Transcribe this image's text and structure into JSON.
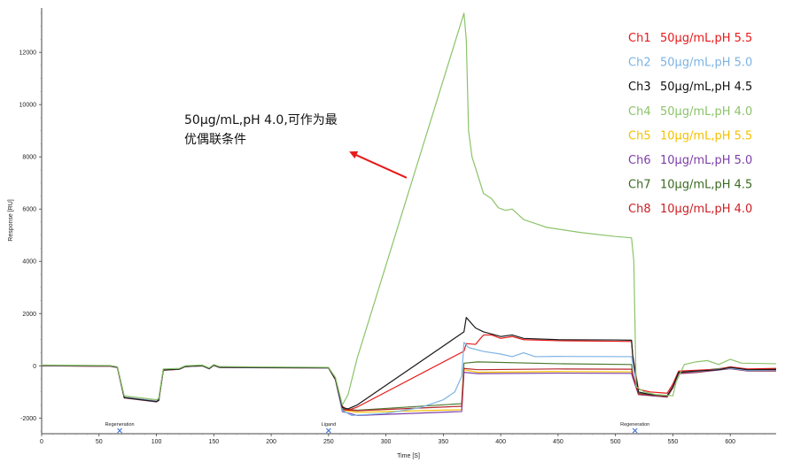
{
  "chart_data": {
    "type": "line",
    "xlabel": "Time [S]",
    "ylabel": "Response [RU]",
    "xlim": [
      0,
      640
    ],
    "ylim": [
      -2600,
      13700
    ],
    "x_ticks": [
      0,
      50,
      100,
      150,
      200,
      250,
      300,
      350,
      400,
      450,
      500,
      550,
      600
    ],
    "y_ticks": [
      -2000,
      0,
      2000,
      4000,
      6000,
      8000,
      10000,
      12000
    ],
    "grid": false,
    "legend_position": "top-right",
    "markers": [
      {
        "label": "Regeneration",
        "x": 68
      },
      {
        "label": "Ligand",
        "x": 250
      },
      {
        "label": "Regeneration",
        "x": 517
      }
    ],
    "annotation": {
      "line1": "50μg/mL,pH 4.0,可作为最",
      "line2": "优偶联条件",
      "arrow_tip": {
        "x": 268,
        "y": 8200
      },
      "arrow_tail": {
        "x": 318,
        "y": 7200
      },
      "color": "#e8191a"
    },
    "series": [
      {
        "channel": "Ch1",
        "label": "50μg/mL,pH 5.5",
        "channel_color": "#e8191a",
        "label_color": "#e8191a",
        "line_color": "#e8191a",
        "points": [
          [
            0,
            20
          ],
          [
            60,
            0
          ],
          [
            66,
            -50
          ],
          [
            72,
            -1200
          ],
          [
            100,
            -1350
          ],
          [
            102,
            -1300
          ],
          [
            106,
            -150
          ],
          [
            120,
            -120
          ],
          [
            125,
            -20
          ],
          [
            140,
            10
          ],
          [
            146,
            -100
          ],
          [
            150,
            30
          ],
          [
            155,
            -50
          ],
          [
            250,
            -70
          ],
          [
            256,
            -500
          ],
          [
            262,
            -1550
          ],
          [
            267,
            -1700
          ],
          [
            275,
            -1580
          ],
          [
            368,
            560
          ],
          [
            370,
            850
          ],
          [
            378,
            820
          ],
          [
            385,
            1180
          ],
          [
            392,
            1180
          ],
          [
            400,
            1050
          ],
          [
            410,
            1120
          ],
          [
            420,
            1000
          ],
          [
            450,
            960
          ],
          [
            500,
            940
          ],
          [
            514,
            930
          ],
          [
            515,
            400
          ],
          [
            520,
            -900
          ],
          [
            530,
            -1000
          ],
          [
            545,
            -1050
          ],
          [
            550,
            -700
          ],
          [
            555,
            -200
          ],
          [
            570,
            -170
          ],
          [
            590,
            -130
          ],
          [
            600,
            -40
          ],
          [
            615,
            -120
          ],
          [
            640,
            -100
          ]
        ]
      },
      {
        "channel": "Ch2",
        "label": "50μg/mL,pH 5.0",
        "channel_color": "#7db3e3",
        "label_color": "#7db3e3",
        "line_color": "#7db3e3",
        "points": [
          [
            0,
            10
          ],
          [
            60,
            -10
          ],
          [
            66,
            -60
          ],
          [
            72,
            -1200
          ],
          [
            100,
            -1350
          ],
          [
            102,
            -1300
          ],
          [
            106,
            -150
          ],
          [
            120,
            -130
          ],
          [
            125,
            -30
          ],
          [
            140,
            0
          ],
          [
            146,
            -110
          ],
          [
            150,
            20
          ],
          [
            155,
            -60
          ],
          [
            250,
            -80
          ],
          [
            256,
            -500
          ],
          [
            262,
            -1700
          ],
          [
            270,
            -1900
          ],
          [
            300,
            -1820
          ],
          [
            330,
            -1600
          ],
          [
            350,
            -1300
          ],
          [
            360,
            -1000
          ],
          [
            366,
            -400
          ],
          [
            368,
            900
          ],
          [
            372,
            700
          ],
          [
            385,
            550
          ],
          [
            400,
            450
          ],
          [
            410,
            350
          ],
          [
            420,
            500
          ],
          [
            430,
            350
          ],
          [
            450,
            360
          ],
          [
            514,
            350
          ],
          [
            515,
            100
          ],
          [
            520,
            -1000
          ],
          [
            530,
            -1100
          ],
          [
            545,
            -1150
          ],
          [
            550,
            -800
          ],
          [
            555,
            -250
          ],
          [
            570,
            -220
          ],
          [
            600,
            -90
          ],
          [
            615,
            -180
          ],
          [
            640,
            -160
          ]
        ]
      },
      {
        "channel": "Ch3",
        "label": "50μg/mL,pH 4.5",
        "channel_color": "#111111",
        "label_color": "#111111",
        "line_color": "#1a1a1a",
        "points": [
          [
            0,
            15
          ],
          [
            60,
            -5
          ],
          [
            66,
            -55
          ],
          [
            72,
            -1220
          ],
          [
            100,
            -1370
          ],
          [
            102,
            -1320
          ],
          [
            106,
            -160
          ],
          [
            120,
            -125
          ],
          [
            125,
            -25
          ],
          [
            140,
            5
          ],
          [
            146,
            -105
          ],
          [
            150,
            25
          ],
          [
            155,
            -55
          ],
          [
            250,
            -75
          ],
          [
            256,
            -520
          ],
          [
            262,
            -1600
          ],
          [
            267,
            -1650
          ],
          [
            275,
            -1500
          ],
          [
            368,
            1300
          ],
          [
            370,
            1850
          ],
          [
            378,
            1450
          ],
          [
            385,
            1300
          ],
          [
            392,
            1220
          ],
          [
            400,
            1120
          ],
          [
            410,
            1180
          ],
          [
            420,
            1050
          ],
          [
            450,
            1000
          ],
          [
            500,
            990
          ],
          [
            514,
            980
          ],
          [
            515,
            400
          ],
          [
            520,
            -1000
          ],
          [
            530,
            -1100
          ],
          [
            545,
            -1150
          ],
          [
            550,
            -800
          ],
          [
            555,
            -250
          ],
          [
            570,
            -200
          ],
          [
            590,
            -150
          ],
          [
            600,
            -60
          ],
          [
            615,
            -150
          ],
          [
            640,
            -140
          ]
        ]
      },
      {
        "channel": "Ch4",
        "label": "50μg/mL,pH 4.0",
        "channel_color": "#8cc36a",
        "label_color": "#8cc36a",
        "line_color": "#8cc36a",
        "points": [
          [
            0,
            30
          ],
          [
            60,
            10
          ],
          [
            66,
            -40
          ],
          [
            72,
            -1150
          ],
          [
            100,
            -1300
          ],
          [
            102,
            -1250
          ],
          [
            106,
            -120
          ],
          [
            120,
            -100
          ],
          [
            125,
            0
          ],
          [
            140,
            30
          ],
          [
            146,
            -80
          ],
          [
            150,
            50
          ],
          [
            155,
            -30
          ],
          [
            250,
            -60
          ],
          [
            256,
            -450
          ],
          [
            262,
            -1500
          ],
          [
            267,
            -1100
          ],
          [
            275,
            300
          ],
          [
            368,
            13500
          ],
          [
            370,
            12500
          ],
          [
            372,
            9000
          ],
          [
            375,
            8000
          ],
          [
            380,
            7300
          ],
          [
            385,
            6600
          ],
          [
            392,
            6400
          ],
          [
            398,
            6050
          ],
          [
            404,
            5950
          ],
          [
            410,
            6000
          ],
          [
            420,
            5600
          ],
          [
            440,
            5300
          ],
          [
            470,
            5100
          ],
          [
            500,
            4950
          ],
          [
            514,
            4900
          ],
          [
            516,
            4000
          ],
          [
            518,
            -800
          ],
          [
            525,
            -1000
          ],
          [
            535,
            -1100
          ],
          [
            550,
            -1150
          ],
          [
            553,
            -600
          ],
          [
            560,
            50
          ],
          [
            570,
            150
          ],
          [
            580,
            200
          ],
          [
            590,
            50
          ],
          [
            600,
            250
          ],
          [
            610,
            100
          ],
          [
            640,
            80
          ]
        ]
      },
      {
        "channel": "Ch5",
        "label": "10μg/mL,pH 5.5",
        "channel_color": "#f5c000",
        "label_color": "#f5c000",
        "line_color": "#f5c000",
        "points": [
          [
            0,
            0
          ],
          [
            60,
            -20
          ],
          [
            66,
            -70
          ],
          [
            72,
            -1230
          ],
          [
            100,
            -1380
          ],
          [
            102,
            -1330
          ],
          [
            106,
            -170
          ],
          [
            120,
            -135
          ],
          [
            125,
            -35
          ],
          [
            140,
            -5
          ],
          [
            146,
            -115
          ],
          [
            150,
            15
          ],
          [
            155,
            -65
          ],
          [
            250,
            -85
          ],
          [
            256,
            -530
          ],
          [
            262,
            -1700
          ],
          [
            275,
            -1780
          ],
          [
            366,
            -1680
          ],
          [
            368,
            -150
          ],
          [
            380,
            -250
          ],
          [
            450,
            -220
          ],
          [
            514,
            -230
          ],
          [
            515,
            -400
          ],
          [
            520,
            -1100
          ],
          [
            545,
            -1200
          ],
          [
            550,
            -850
          ],
          [
            555,
            -300
          ],
          [
            570,
            -260
          ],
          [
            600,
            -110
          ],
          [
            615,
            -200
          ],
          [
            640,
            -200
          ]
        ]
      },
      {
        "channel": "Ch6",
        "label": "10μg/mL,pH 5.0",
        "channel_color": "#7d3fa8",
        "label_color": "#7d3fa8",
        "line_color": "#7d3fa8",
        "points": [
          [
            0,
            0
          ],
          [
            60,
            -20
          ],
          [
            66,
            -70
          ],
          [
            72,
            -1230
          ],
          [
            100,
            -1380
          ],
          [
            102,
            -1330
          ],
          [
            106,
            -170
          ],
          [
            120,
            -135
          ],
          [
            125,
            -35
          ],
          [
            140,
            -5
          ],
          [
            146,
            -115
          ],
          [
            150,
            15
          ],
          [
            155,
            -65
          ],
          [
            250,
            -85
          ],
          [
            256,
            -530
          ],
          [
            262,
            -1750
          ],
          [
            275,
            -1900
          ],
          [
            366,
            -1750
          ],
          [
            368,
            -250
          ],
          [
            380,
            -300
          ],
          [
            450,
            -280
          ],
          [
            514,
            -290
          ],
          [
            515,
            -450
          ],
          [
            520,
            -1100
          ],
          [
            545,
            -1200
          ],
          [
            550,
            -850
          ],
          [
            555,
            -300
          ],
          [
            570,
            -260
          ],
          [
            600,
            -110
          ],
          [
            615,
            -200
          ],
          [
            640,
            -200
          ]
        ]
      },
      {
        "channel": "Ch7",
        "label": "10μg/mL,pH 4.5",
        "channel_color": "#3a6b22",
        "label_color": "#3a6b22",
        "line_color": "#4c7a30",
        "points": [
          [
            0,
            10
          ],
          [
            60,
            -10
          ],
          [
            66,
            -60
          ],
          [
            72,
            -1210
          ],
          [
            100,
            -1360
          ],
          [
            102,
            -1310
          ],
          [
            106,
            -150
          ],
          [
            120,
            -125
          ],
          [
            125,
            -25
          ],
          [
            140,
            5
          ],
          [
            146,
            -105
          ],
          [
            150,
            25
          ],
          [
            155,
            -55
          ],
          [
            250,
            -75
          ],
          [
            256,
            -510
          ],
          [
            262,
            -1650
          ],
          [
            275,
            -1700
          ],
          [
            366,
            -1450
          ],
          [
            368,
            100
          ],
          [
            380,
            150
          ],
          [
            450,
            80
          ],
          [
            514,
            50
          ],
          [
            515,
            -300
          ],
          [
            520,
            -1050
          ],
          [
            545,
            -1150
          ],
          [
            550,
            -800
          ],
          [
            555,
            -250
          ],
          [
            570,
            -200
          ],
          [
            600,
            -60
          ],
          [
            615,
            -160
          ],
          [
            640,
            -150
          ]
        ]
      },
      {
        "channel": "Ch8",
        "label": "10μg/mL,pH 4.0",
        "channel_color": "#cc1f24",
        "label_color": "#cc1f24",
        "line_color": "#b5272b",
        "points": [
          [
            0,
            5
          ],
          [
            60,
            -15
          ],
          [
            66,
            -65
          ],
          [
            72,
            -1220
          ],
          [
            100,
            -1370
          ],
          [
            102,
            -1320
          ],
          [
            106,
            -160
          ],
          [
            120,
            -130
          ],
          [
            125,
            -30
          ],
          [
            140,
            0
          ],
          [
            146,
            -110
          ],
          [
            150,
            20
          ],
          [
            155,
            -60
          ],
          [
            250,
            -80
          ],
          [
            256,
            -520
          ],
          [
            262,
            -1680
          ],
          [
            275,
            -1720
          ],
          [
            366,
            -1550
          ],
          [
            368,
            -100
          ],
          [
            380,
            -150
          ],
          [
            450,
            -120
          ],
          [
            514,
            -130
          ],
          [
            515,
            -350
          ],
          [
            520,
            -1080
          ],
          [
            545,
            -1180
          ],
          [
            550,
            -830
          ],
          [
            555,
            -280
          ],
          [
            570,
            -240
          ],
          [
            600,
            -90
          ],
          [
            615,
            -180
          ],
          [
            640,
            -180
          ]
        ]
      }
    ]
  }
}
